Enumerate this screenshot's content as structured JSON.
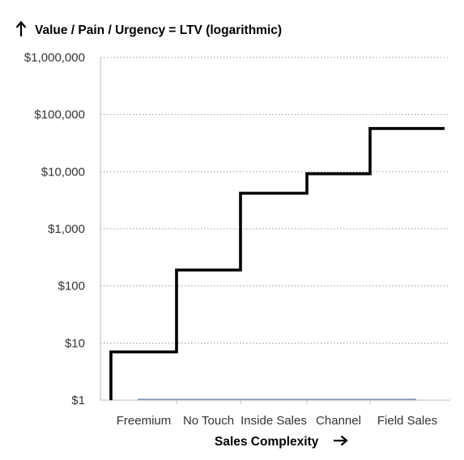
{
  "chart_data": {
    "type": "line",
    "title": "Value / Pain / Urgency = LTV (logarithmic)",
    "xlabel": "Sales Complexity",
    "ylabel": "",
    "y_scale": "log",
    "ylim": [
      1,
      1000000
    ],
    "y_ticks": [
      1,
      10,
      100,
      1000,
      10000,
      100000,
      1000000
    ],
    "y_tick_labels": [
      "$1",
      "$10",
      "$100",
      "$1,000",
      "$10,000",
      "$100,000",
      "$1,000,000"
    ],
    "categories": [
      "Freemium",
      "No Touch",
      "Inside Sales",
      "Channel",
      "Field Sales"
    ],
    "line_style": "step",
    "grid": true,
    "legend": "none",
    "series": [
      {
        "values": [
          7,
          190,
          4200,
          9200,
          57000
        ]
      }
    ]
  },
  "colors": {
    "line": "#000000",
    "grid": "#9a9a9a",
    "baseline": "#5b7fb5"
  },
  "icons": {
    "title_arrow": "up-arrow-icon",
    "xlabel_arrow": "right-arrow-icon"
  }
}
